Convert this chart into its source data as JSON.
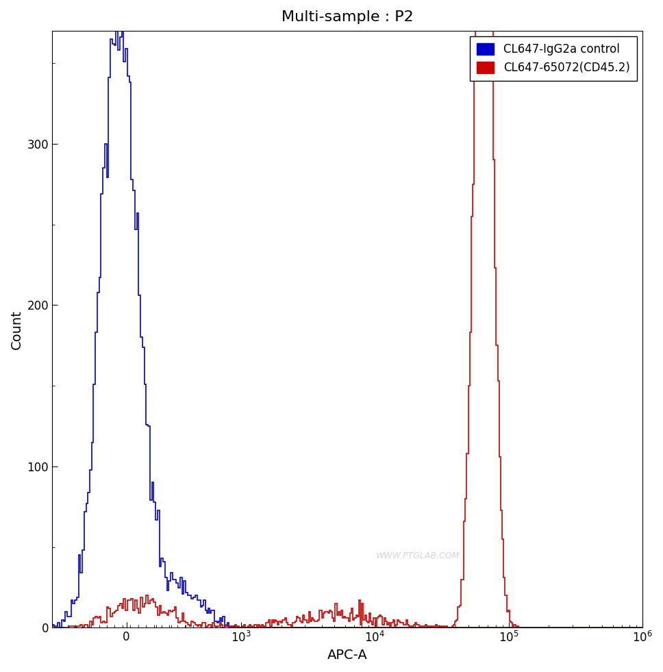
{
  "title": "Multi-sample : P2",
  "xlabel": "APC-A",
  "ylabel": "Count",
  "ylim": [
    0,
    370
  ],
  "yticks": [
    0,
    100,
    200,
    300
  ],
  "background_color": "#ffffff",
  "title_fontsize": 16,
  "axis_label_fontsize": 14,
  "tick_fontsize": 12,
  "legend_labels": [
    "CL647-IgG2a control",
    "CL647-65072(CD45.2)"
  ],
  "legend_colors": [
    "#0000cc",
    "#cc0000"
  ],
  "watermark": "WWW.PTGLAB.COM",
  "linthresh": 500,
  "linscale": 0.5
}
